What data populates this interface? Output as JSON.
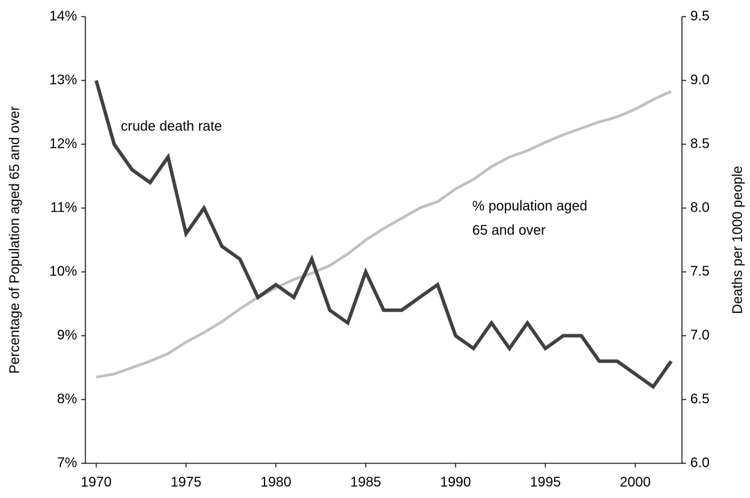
{
  "chart_data": {
    "type": "line",
    "x": [
      1970,
      1971,
      1972,
      1973,
      1974,
      1975,
      1976,
      1977,
      1978,
      1979,
      1980,
      1981,
      1982,
      1983,
      1984,
      1985,
      1986,
      1987,
      1988,
      1989,
      1990,
      1991,
      1992,
      1993,
      1994,
      1995,
      1996,
      1997,
      1998,
      1999,
      2000,
      2001,
      2002
    ],
    "xlim": [
      1969.4,
      2002.6
    ],
    "xticks": [
      1970,
      1975,
      1980,
      1985,
      1990,
      1995,
      2000
    ],
    "ylabel": "Percentage of Population aged 65 and over",
    "y2label": "Deaths per 1000 people",
    "ylim": [
      7,
      14
    ],
    "yticks": [
      {
        "value": 7,
        "label": "7%"
      },
      {
        "value": 8,
        "label": "8%"
      },
      {
        "value": 9,
        "label": "9%"
      },
      {
        "value": 10,
        "label": "10%"
      },
      {
        "value": 11,
        "label": "11%"
      },
      {
        "value": 12,
        "label": "12%"
      },
      {
        "value": 13,
        "label": "13%"
      },
      {
        "value": 14,
        "label": "14%"
      }
    ],
    "y2lim": [
      6,
      9.5
    ],
    "y2ticks": [
      {
        "value": 6,
        "label": "6.0"
      },
      6.5,
      {
        "value": 7,
        "label": "7.0"
      },
      7.5,
      {
        "value": 8,
        "label": "8.0"
      },
      8.5,
      {
        "value": 9,
        "label": "9.0"
      },
      9.5
    ],
    "annotations": [
      "crude death rate",
      "% population aged",
      "65 and over"
    ],
    "series": [
      {
        "name": "% population aged 65 and over",
        "color": "#c0c0c0",
        "axis": "y",
        "values": [
          8.35,
          8.4,
          8.5,
          8.6,
          8.72,
          8.9,
          9.05,
          9.22,
          9.42,
          9.6,
          9.75,
          9.88,
          9.98,
          10.1,
          10.28,
          10.5,
          10.68,
          10.84,
          11.0,
          11.1,
          11.3,
          11.45,
          11.65,
          11.8,
          11.9,
          12.03,
          12.15,
          12.25,
          12.35,
          12.43,
          12.55,
          12.7,
          12.83
        ]
      },
      {
        "name": "crude death rate",
        "color": "#404040",
        "axis": "y2",
        "values": [
          9.0,
          8.5,
          8.3,
          8.2,
          8.4,
          7.8,
          8.0,
          7.7,
          7.6,
          7.3,
          7.4,
          7.3,
          7.6,
          7.2,
          7.1,
          7.5,
          7.2,
          7.2,
          7.3,
          7.4,
          7.0,
          6.9,
          7.1,
          6.9,
          7.1,
          6.9,
          7.0,
          7.0,
          6.8,
          6.8,
          6.7,
          6.6,
          6.8
        ]
      }
    ]
  }
}
